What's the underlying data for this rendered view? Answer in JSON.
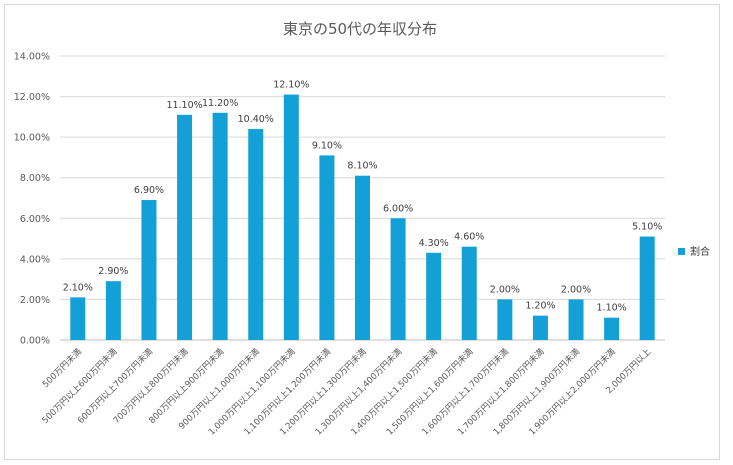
{
  "chart_data": {
    "type": "bar",
    "title": "東京の50代の年収分布",
    "xlabel": "",
    "ylabel": "",
    "ylim": [
      0,
      14
    ],
    "yticks": [
      0,
      2,
      4,
      6,
      8,
      10,
      12,
      14
    ],
    "ytick_labels": [
      "0.00%",
      "2.00%",
      "4.00%",
      "6.00%",
      "8.00%",
      "10.00%",
      "12.00%",
      "14.00%"
    ],
    "grid": true,
    "legend_position": "right",
    "series": [
      {
        "name": "割合",
        "color": "#12a0d7",
        "values": [
          2.1,
          2.9,
          6.9,
          11.1,
          11.2,
          10.4,
          12.1,
          9.1,
          8.1,
          6.0,
          4.3,
          4.6,
          2.0,
          1.2,
          2.0,
          1.1,
          5.1
        ],
        "labels": [
          "2.10%",
          "2.90%",
          "6.90%",
          "11.10%",
          "11.20%",
          "10.40%",
          "12.10%",
          "9.10%",
          "8.10%",
          "6.00%",
          "4.30%",
          "4.60%",
          "2.00%",
          "1.20%",
          "2.00%",
          "1.10%",
          "5.10%"
        ]
      }
    ],
    "categories": [
      "500万円未満",
      "500万円以上600万円未満",
      "600万円以上700万円未満",
      "700万円以上800万円未満",
      "800万円以上900万円未満",
      "900万円以上1,000万円未満",
      "1,000万円以上1,100万円未満",
      "1,100万円以上1,200万円未満",
      "1,200万円以上1,300万円未満",
      "1,300万円以上1,400万円未満",
      "1,400万円以上1,500万円未満",
      "1,500万円以上1,600万円未満",
      "1,600万円以上1,700万円未満",
      "1,700万円以上1,800万円未満",
      "1,800万円以上1,900万円未満",
      "1,900万円以上2,000万円未満",
      "2,000万円以上"
    ]
  }
}
